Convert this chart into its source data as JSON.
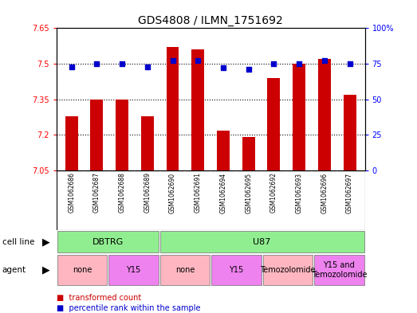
{
  "title": "GDS4808 / ILMN_1751692",
  "samples": [
    "GSM1062686",
    "GSM1062687",
    "GSM1062688",
    "GSM1062689",
    "GSM1062690",
    "GSM1062691",
    "GSM1062694",
    "GSM1062695",
    "GSM1062692",
    "GSM1062693",
    "GSM1062696",
    "GSM1062697"
  ],
  "red_values": [
    7.28,
    7.35,
    7.35,
    7.28,
    7.57,
    7.56,
    7.22,
    7.19,
    7.44,
    7.5,
    7.52,
    7.37
  ],
  "blue_values": [
    73,
    75,
    75,
    73,
    77,
    77,
    72,
    71,
    75,
    75,
    77,
    75
  ],
  "ylim_left": [
    7.05,
    7.65
  ],
  "ylim_right": [
    0,
    100
  ],
  "yticks_left": [
    7.05,
    7.2,
    7.35,
    7.5,
    7.65
  ],
  "yticks_right": [
    0,
    25,
    50,
    75,
    100
  ],
  "ytick_labels_left": [
    "7.05",
    "7.2",
    "7.35",
    "7.5",
    "7.65"
  ],
  "ytick_labels_right": [
    "0",
    "25",
    "50",
    "75",
    "100%"
  ],
  "hlines": [
    7.2,
    7.35,
    7.5
  ],
  "cell_line_groups": [
    {
      "label": "DBTRG",
      "start": 0,
      "end": 4,
      "color": "#90ee90"
    },
    {
      "label": "U87",
      "start": 4,
      "end": 12,
      "color": "#90ee90"
    }
  ],
  "agent_groups": [
    {
      "label": "none",
      "start": 0,
      "end": 2,
      "color": "#ffb6c1"
    },
    {
      "label": "Y15",
      "start": 2,
      "end": 4,
      "color": "#ee82ee"
    },
    {
      "label": "none",
      "start": 4,
      "end": 6,
      "color": "#ffb6c1"
    },
    {
      "label": "Y15",
      "start": 6,
      "end": 8,
      "color": "#ee82ee"
    },
    {
      "label": "Temozolomide",
      "start": 8,
      "end": 10,
      "color": "#ffb6c1"
    },
    {
      "label": "Y15 and\nTemozolomide",
      "start": 10,
      "end": 12,
      "color": "#ee82ee"
    }
  ],
  "bar_color": "#cc0000",
  "dot_color": "#0000cc",
  "gray_bg": "#d3d3d3",
  "legend_red": "transformed count",
  "legend_blue": "percentile rank within the sample",
  "cell_line_label": "cell line",
  "agent_label": "agent"
}
